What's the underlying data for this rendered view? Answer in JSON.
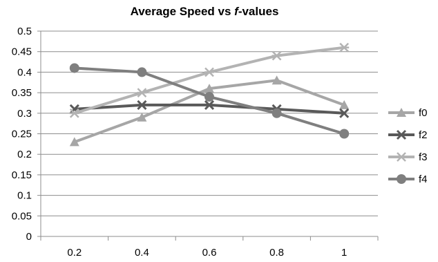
{
  "chart_data": {
    "type": "line",
    "title_prefix": "Average Speed vs ",
    "title_italic": "f",
    "title_suffix": "-values",
    "xlabel": "",
    "ylabel": "",
    "x": [
      0.2,
      0.4,
      0.6,
      0.8,
      1
    ],
    "x_tick_labels": [
      "0.2",
      "0.4",
      "0.6",
      "0.8",
      "1"
    ],
    "y_tick_labels": [
      "0",
      "0.05",
      "0.1",
      "0.15",
      "0.2",
      "0.25",
      "0.3",
      "0.35",
      "0.4",
      "0.45",
      "0.5"
    ],
    "ylim": [
      0,
      0.5
    ],
    "y_step": 0.05,
    "grid": "horizontal",
    "legend_position": "right",
    "series": [
      {
        "name": "f0",
        "marker": "triangle",
        "color": "#a6a6a6",
        "values": [
          0.23,
          0.29,
          0.36,
          0.38,
          0.32
        ]
      },
      {
        "name": "f2",
        "marker": "x",
        "color": "#595959",
        "values": [
          0.31,
          0.32,
          0.32,
          0.31,
          0.3
        ]
      },
      {
        "name": "f3",
        "marker": "asterisk",
        "color": "#b3b3b3",
        "values": [
          0.3,
          0.35,
          0.4,
          0.44,
          0.46
        ]
      },
      {
        "name": "f4",
        "marker": "circle",
        "color": "#7f7f7f",
        "values": [
          0.41,
          0.4,
          0.34,
          0.3,
          0.25
        ]
      }
    ]
  }
}
